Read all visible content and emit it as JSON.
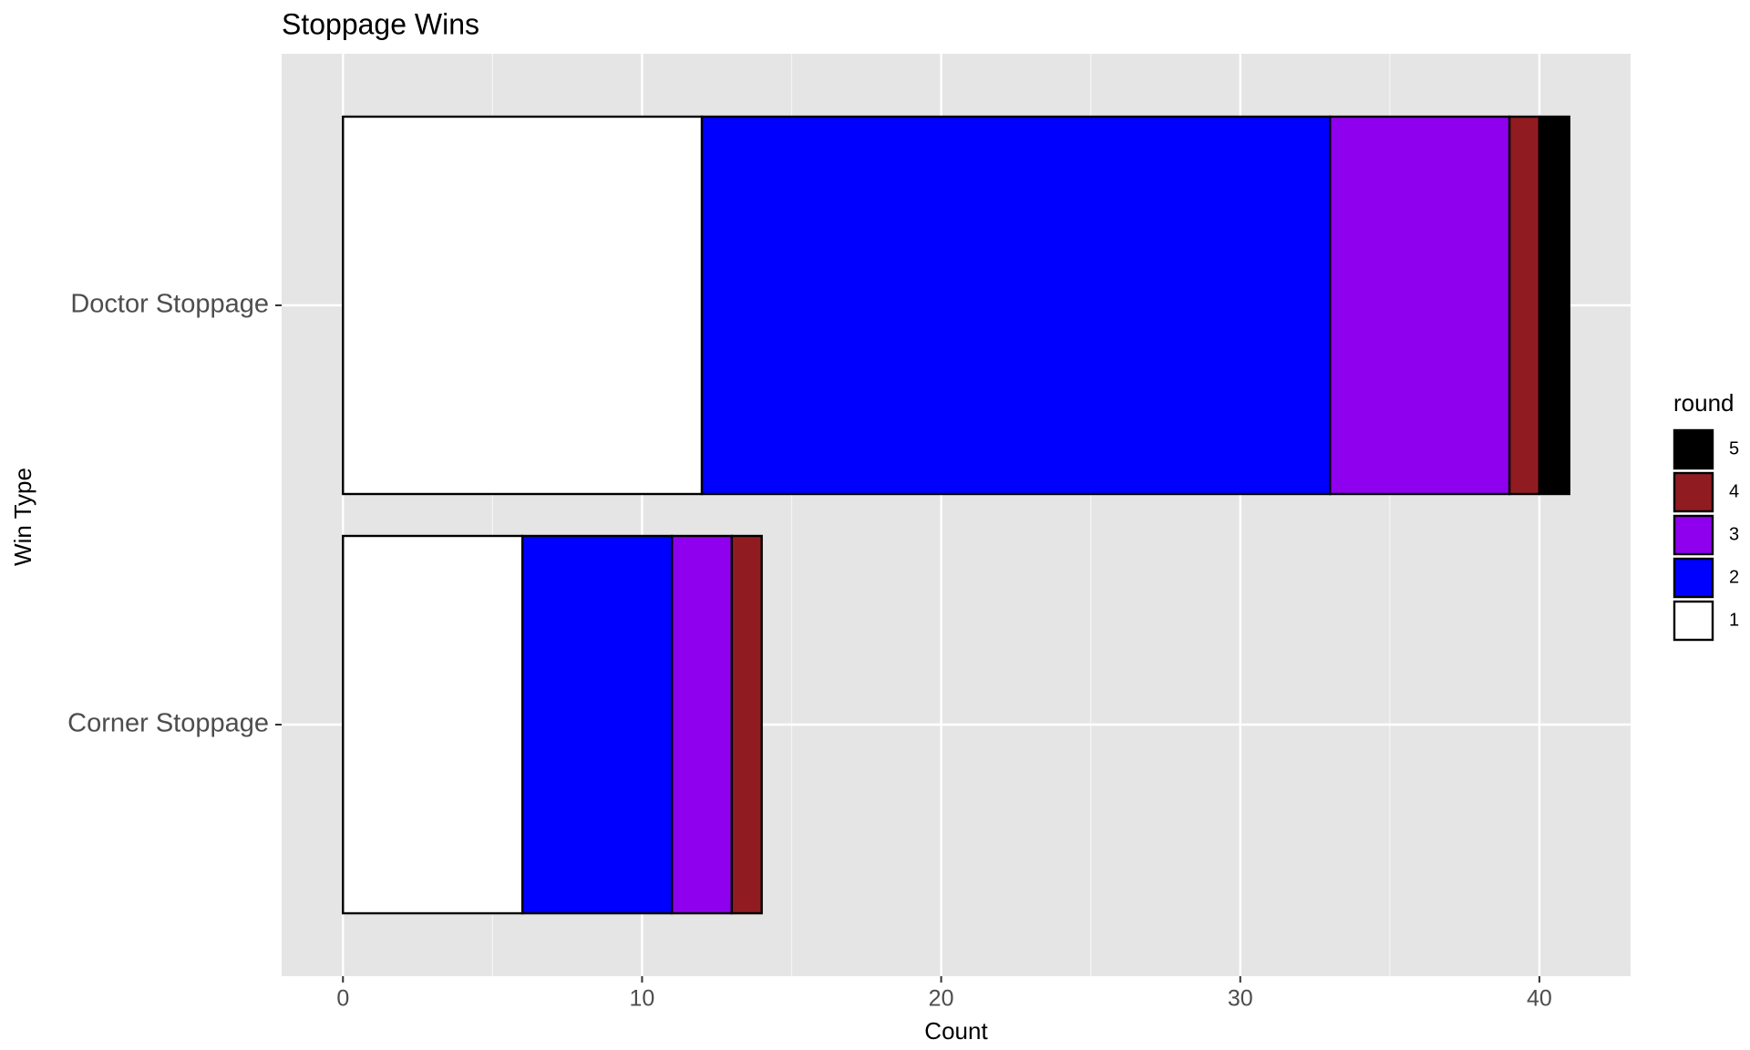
{
  "chart_data": {
    "type": "stacked_bar_horizontal",
    "title": "Stoppage Wins",
    "x_label": "Count",
    "y_label": "Win Type",
    "categories": [
      "Corner Stoppage",
      "Doctor Stoppage"
    ],
    "series": [
      {
        "name": "1",
        "color": "#ffffff",
        "values": [
          6,
          12
        ]
      },
      {
        "name": "2",
        "color": "#0000ff",
        "values": [
          5,
          21
        ]
      },
      {
        "name": "3",
        "color": "#8e00ee",
        "values": [
          2,
          6
        ]
      },
      {
        "name": "4",
        "color": "#901c22",
        "values": [
          1,
          1
        ]
      },
      {
        "name": "5",
        "color": "#000000",
        "values": [
          0,
          1
        ]
      }
    ],
    "legend_title": "round",
    "legend_position": "right",
    "xlim": [
      -2.05,
      43.05
    ],
    "xticks": [
      0,
      10,
      20,
      30,
      40
    ],
    "x_minor_grid": [
      5,
      15,
      25,
      35
    ],
    "grid": true
  }
}
